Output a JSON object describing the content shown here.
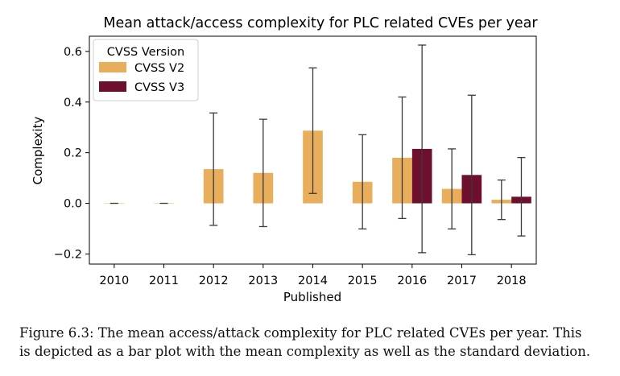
{
  "chart_data": {
    "type": "bar",
    "title": "Mean attack/access complexity for PLC related CVEs per year",
    "xlabel": "Published",
    "ylabel": "Complexity",
    "categories": [
      "2010",
      "2011",
      "2012",
      "2013",
      "2014",
      "2015",
      "2016",
      "2017",
      "2018"
    ],
    "ylim": [
      -0.24,
      0.66
    ],
    "yticks": [
      -0.2,
      0.0,
      0.2,
      0.4,
      0.6
    ],
    "ytick_labels": [
      "−0.2",
      "0.0",
      "0.2",
      "0.4",
      "0.6"
    ],
    "grid": false,
    "legend": {
      "title": "CVSS Version",
      "placement": "top-left"
    },
    "series": [
      {
        "name": "CVSS V2",
        "color": "#E8AE5C",
        "values": [
          0.0,
          0.0,
          0.135,
          0.12,
          0.287,
          0.085,
          0.18,
          0.057,
          0.014
        ],
        "std": [
          0.0,
          0.0,
          0.222,
          0.212,
          0.248,
          0.186,
          0.24,
          0.158,
          0.078
        ]
      },
      {
        "name": "CVSS V3",
        "color": "#6E0F2E",
        "values": [
          null,
          null,
          null,
          null,
          null,
          null,
          0.215,
          0.112,
          0.026
        ],
        "std": [
          null,
          null,
          null,
          null,
          null,
          null,
          0.41,
          0.315,
          0.155
        ]
      }
    ]
  },
  "caption": {
    "line1": "Figure 6.3: The mean access/attack complexity for PLC related CVEs per year. This",
    "line2": "is depicted as a bar plot with the mean complexity as well as the standard deviation."
  }
}
